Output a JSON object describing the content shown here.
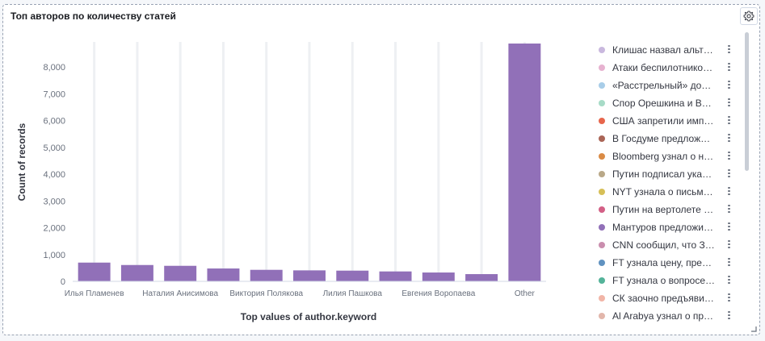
{
  "panel": {
    "title": "Топ авторов по количеству статей"
  },
  "chart_data": {
    "type": "bar",
    "categories": [
      "Илья Пламенев",
      "",
      "Наталия Анисимова",
      "",
      "Виктория Полякова",
      "",
      "Лилия Пашкова",
      "",
      "Евгения Воропаева",
      "",
      "Other"
    ],
    "series": [
      {
        "values": [
          700,
          610,
          580,
          480,
          430,
          410,
          400,
          370,
          330,
          270,
          8880
        ]
      }
    ],
    "xlabel": "Top values of author.keyword",
    "ylabel": "Count of records",
    "ylim": [
      0,
      8880
    ],
    "yticks": [
      0,
      1000,
      2000,
      3000,
      4000,
      5000,
      6000,
      7000,
      8000
    ],
    "ytick_labels": [
      "0",
      "1,000",
      "2,000",
      "3,000",
      "4,000",
      "5,000",
      "6,000",
      "7,000",
      "8,000"
    ],
    "bar_color": "#9170b8",
    "grid": "vertical",
    "legend_position": "right"
  },
  "legend": {
    "items": [
      {
        "label": "Клишас назвал альт…",
        "color": "#c9b8de"
      },
      {
        "label": "Атаки беспилотнико…",
        "color": "#e7b2d0"
      },
      {
        "label": "«Расстрельный» до…",
        "color": "#a8cde8"
      },
      {
        "label": "Спор Орешкина и Во…",
        "color": "#a7dbc7"
      },
      {
        "label": "США запретили имп…",
        "color": "#e7664c"
      },
      {
        "label": "В Госдуме предлож…",
        "color": "#aa6556"
      },
      {
        "label": "Bloomberg узнал о н…",
        "color": "#da8b45"
      },
      {
        "label": "Путин подписал ука…",
        "color": "#b9a888"
      },
      {
        "label": "NYT узнала о письм…",
        "color": "#d6bf57"
      },
      {
        "label": "Путин на вертолете …",
        "color": "#d36086"
      },
      {
        "label": "Мантуров предложи…",
        "color": "#9170b8"
      },
      {
        "label": "CNN сообщил, что З…",
        "color": "#ca8eae"
      },
      {
        "label": "FT узнала цену, пре…",
        "color": "#6092c0"
      },
      {
        "label": "FT узнала о вопросе…",
        "color": "#54b399"
      },
      {
        "label": "СК заочно предъяви…",
        "color": "#f1b5a7"
      },
      {
        "label": "Al Arabya узнал о пр…",
        "color": "#e2b6ab"
      }
    ]
  },
  "icons": {
    "settings": "gear-icon",
    "legend_menu": "vertical-dots-icon",
    "resize": "resize-handle-icon"
  }
}
